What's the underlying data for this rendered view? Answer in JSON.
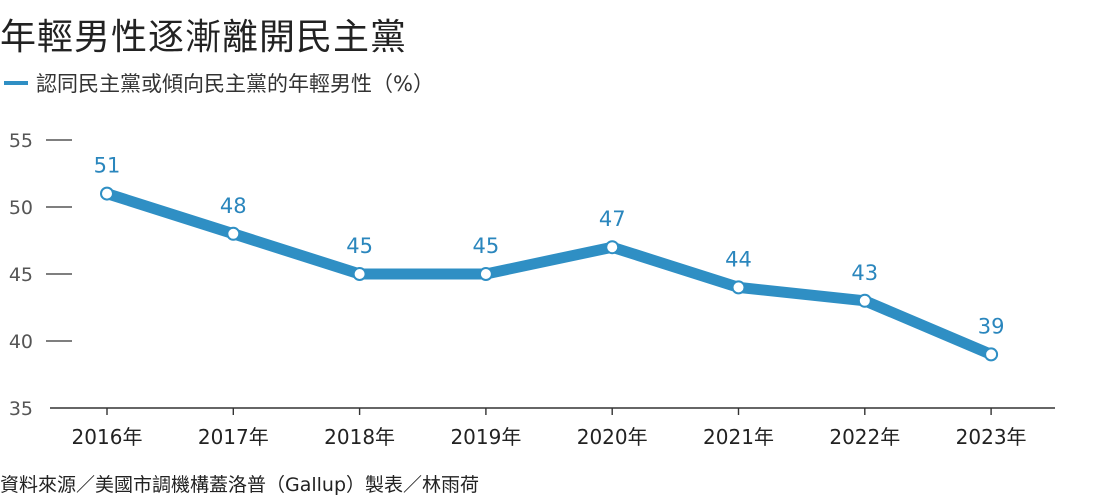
{
  "title": "年輕男性逐漸離開民主黨",
  "source": "資料來源／美國市調機構蓋洛普（Gallup）製表／林雨荷",
  "colors": {
    "line": "#2f8fc4",
    "label": "#2a86bd",
    "axis": "#333333",
    "tick_text": "#555555"
  },
  "chart_data": {
    "type": "line",
    "categories": [
      "2016年",
      "2017年",
      "2018年",
      "2019年",
      "2020年",
      "2021年",
      "2022年",
      "2023年"
    ],
    "series": [
      {
        "name": "認同民主黨或傾向民主黨的年輕男性（%）",
        "values": [
          51,
          48,
          45,
          45,
          47,
          44,
          43,
          39
        ]
      }
    ],
    "ylim": [
      35,
      55
    ],
    "yticks": [
      35,
      40,
      45,
      50,
      55
    ],
    "data_labels": true,
    "grid": false,
    "legend": "top-left"
  }
}
